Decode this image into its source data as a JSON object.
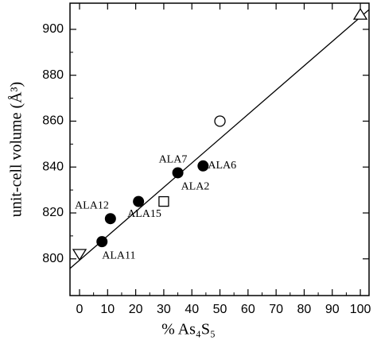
{
  "chart_data": {
    "type": "scatter",
    "x_label": "% As₄S₅",
    "y_label": "unit-cell volume (Å³)",
    "xlim": [
      -3.4,
      103.1
    ],
    "ylim": [
      784,
      911.4
    ],
    "xticks": [
      0,
      10,
      20,
      30,
      40,
      50,
      60,
      70,
      80,
      90,
      100
    ],
    "yticks": [
      800,
      820,
      840,
      860,
      880,
      900
    ],
    "color": "#000000",
    "fit_line": {
      "x": [
        -3.4,
        103.1
      ],
      "values": [
        795.8,
        908.6
      ]
    },
    "series": [
      {
        "marker": "circle-filled",
        "x": [
          8,
          11,
          21,
          35,
          44
        ],
        "values": [
          807.5,
          817.5,
          825,
          837.5,
          840.5
        ]
      },
      {
        "marker": "square-open",
        "x": [
          30
        ],
        "values": [
          825
        ]
      },
      {
        "marker": "circle-open",
        "x": [
          50
        ],
        "values": [
          860
        ]
      },
      {
        "marker": "triangle-up-open",
        "x": [
          100
        ],
        "values": [
          906.5
        ]
      },
      {
        "marker": "triangle-down-open",
        "x": [
          0
        ],
        "values": [
          802
        ]
      }
    ],
    "annotations": [
      {
        "text": "ALA11",
        "x": 8,
        "y": 807.5
      },
      {
        "text": "ALA12",
        "x": 11,
        "y": 817.5
      },
      {
        "text": "ALA15",
        "x": 21,
        "y": 825
      },
      {
        "text": "ALA7",
        "x": 35,
        "y": 837.5
      },
      {
        "text": "ALA2",
        "x": 35,
        "y": 837.5
      },
      {
        "text": "ALA6",
        "x": 44,
        "y": 840.5
      }
    ]
  }
}
